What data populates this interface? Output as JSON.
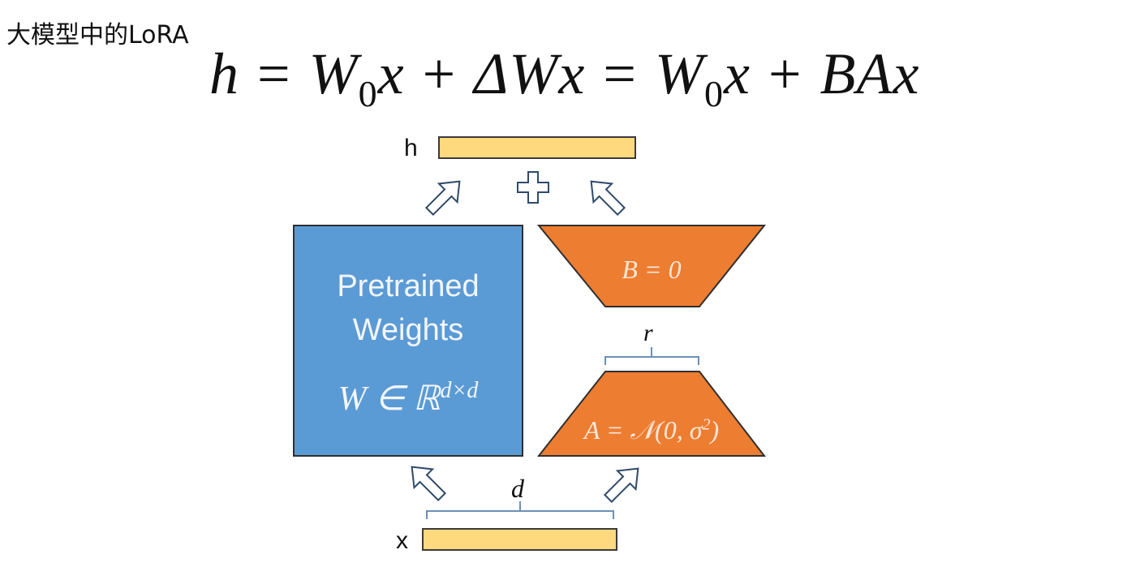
{
  "title": "大模型中的LoRA",
  "formula": {
    "h": "h",
    "eq1": "=",
    "w0a": "W",
    "sub0a": "0",
    "xa": "x",
    "plus1": "+",
    "delta": "ΔW",
    "xb": "x",
    "eq2": "=",
    "w0b": "W",
    "sub0b": "0",
    "xc": "x",
    "plus2": "+",
    "ba": "BA",
    "xd": "x"
  },
  "diagram": {
    "output_label": "h",
    "input_label": "x",
    "pretrained_line1": "Pretrained",
    "pretrained_line2": "Weights",
    "w_base": "W ∈ ℝ",
    "w_exp": "d×d",
    "b_label": "B = 0",
    "a_base": "A = 𝒩(0, σ",
    "a_exp": "2",
    "a_close": ")",
    "r_label": "r",
    "d_label": "d",
    "colors": {
      "pretrained_fill": "#5B9BD5",
      "lora_fill": "#ED7D31",
      "vector_fill": "#FFD97D",
      "arrow_stroke": "#2F4A6B"
    }
  }
}
